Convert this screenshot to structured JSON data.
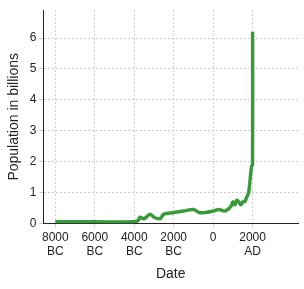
{
  "chart_data": {
    "type": "line",
    "x_label": "Date",
    "y_label": "Population in billions",
    "x": [
      -8000,
      -6000,
      -4000,
      -3800,
      -3700,
      -3500,
      -3200,
      -3000,
      -2700,
      -2500,
      -2000,
      -1500,
      -1000,
      -700,
      -400,
      0,
      300,
      600,
      900,
      1000,
      1100,
      1200,
      1300,
      1400,
      1500,
      1600,
      1700,
      1800,
      1900,
      1950,
      1995,
      2000
    ],
    "values": [
      0.05,
      0.05,
      0.05,
      0.1,
      0.2,
      0.15,
      0.3,
      0.2,
      0.15,
      0.3,
      0.35,
      0.4,
      0.45,
      0.35,
      0.35,
      0.4,
      0.45,
      0.4,
      0.55,
      0.7,
      0.6,
      0.75,
      0.7,
      0.6,
      0.7,
      0.7,
      0.85,
      1.0,
      1.6,
      1.85,
      1.9,
      6.2
    ],
    "color": "#3a9a3a",
    "xlim": [
      -8600,
      4300
    ],
    "xticks": [
      {
        "value": -8000,
        "label": "8000 BC"
      },
      {
        "value": -6000,
        "label": "6000 BC"
      },
      {
        "value": -4000,
        "label": "4000 BC"
      },
      {
        "value": -2000,
        "label": "2000 BC"
      },
      0,
      {
        "value": 2000,
        "label": "2000 AD"
      }
    ],
    "ylim": [
      0,
      6.9
    ],
    "yticks": [
      0,
      1,
      2,
      3,
      4,
      5,
      6
    ],
    "grid": true
  }
}
